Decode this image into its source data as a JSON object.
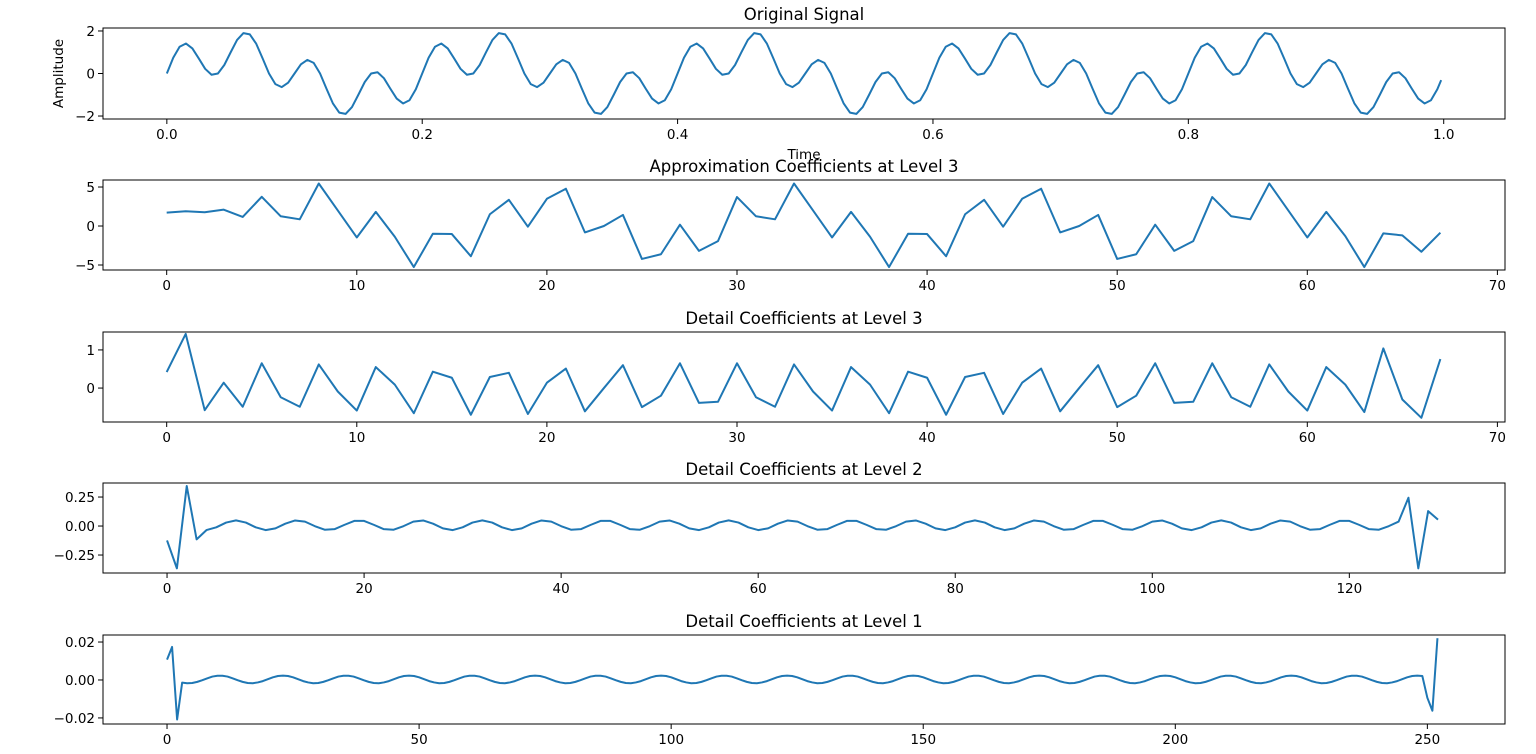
{
  "line_color": "#1f77b4",
  "chart_data": [
    {
      "type": "line",
      "title": "Original Signal",
      "xlabel": "Time",
      "ylabel": "Amplitude",
      "xlim": [
        -0.05,
        1.048
      ],
      "ylim": [
        -2.14,
        2.14
      ],
      "xticks": [
        0.0,
        0.2,
        0.4,
        0.6,
        0.8,
        1.0
      ],
      "xtick_labels": [
        "0.0",
        "0.2",
        "0.4",
        "0.6",
        "0.8",
        "1.0"
      ],
      "yticks": [
        -2,
        0,
        2
      ],
      "ytick_labels": [
        "−2",
        "0",
        "2"
      ],
      "grid": false,
      "x": [
        0,
        0.005,
        0.01,
        0.015,
        0.02,
        0.025,
        0.03,
        0.035,
        0.04,
        0.045,
        0.05,
        0.055,
        0.06,
        0.065,
        0.07,
        0.075,
        0.08,
        0.085,
        0.09,
        0.095,
        0.1,
        0.105,
        0.11,
        0.115,
        0.12,
        0.125,
        0.13,
        0.135,
        0.14,
        0.145,
        0.15,
        0.155,
        0.16,
        0.165,
        0.17,
        0.175,
        0.18,
        0.185,
        0.19,
        0.195,
        0.2,
        0.205,
        0.21,
        0.215,
        0.22,
        0.225,
        0.23,
        0.235,
        0.24,
        0.245,
        0.25,
        0.255,
        0.26,
        0.265,
        0.27,
        0.275,
        0.28,
        0.285,
        0.29,
        0.295,
        0.3,
        0.305,
        0.31,
        0.315,
        0.32,
        0.325,
        0.33,
        0.335,
        0.34,
        0.345,
        0.35,
        0.355,
        0.36,
        0.365,
        0.37,
        0.375,
        0.38,
        0.385,
        0.39,
        0.395,
        0.4,
        0.405,
        0.41,
        0.415,
        0.42,
        0.425,
        0.43,
        0.435,
        0.44,
        0.445,
        0.45,
        0.455,
        0.46,
        0.465,
        0.47,
        0.475,
        0.48,
        0.485,
        0.49,
        0.495,
        0.5,
        0.505,
        0.51,
        0.515,
        0.52,
        0.525,
        0.53,
        0.535,
        0.54,
        0.545,
        0.55,
        0.555,
        0.56,
        0.565,
        0.57,
        0.575,
        0.58,
        0.585,
        0.59,
        0.595,
        0.6,
        0.605,
        0.61,
        0.615,
        0.62,
        0.625,
        0.63,
        0.635,
        0.64,
        0.645,
        0.65,
        0.655,
        0.66,
        0.665,
        0.67,
        0.675,
        0.68,
        0.685,
        0.69,
        0.695,
        0.7,
        0.705,
        0.71,
        0.715,
        0.72,
        0.725,
        0.73,
        0.735,
        0.74,
        0.745,
        0.75,
        0.755,
        0.76,
        0.765,
        0.77,
        0.775,
        0.78,
        0.785,
        0.79,
        0.795,
        0.8,
        0.805,
        0.81,
        0.815,
        0.82,
        0.825,
        0.83,
        0.835,
        0.84,
        0.845,
        0.85,
        0.855,
        0.86,
        0.865,
        0.87,
        0.875,
        0.88,
        0.885,
        0.89,
        0.895,
        0.9,
        0.905,
        0.91,
        0.915,
        0.92,
        0.925,
        0.93,
        0.935,
        0.94,
        0.945,
        0.95,
        0.955,
        0.96,
        0.965,
        0.97,
        0.975,
        0.98,
        0.985,
        0.99,
        0.995,
        0.998
      ],
      "values": [
        0,
        0.74,
        1.26,
        1.41,
        1.18,
        0.71,
        0.22,
        -0.06,
        0,
        0.4,
        1,
        1.58,
        1.9,
        1.84,
        1.4,
        0.71,
        0,
        -0.5,
        -0.64,
        -0.43,
        0,
        0.43,
        0.64,
        0.5,
        0,
        -0.71,
        -1.4,
        -1.84,
        -1.9,
        -1.58,
        -1,
        -0.4,
        0,
        0.06,
        -0.22,
        -0.71,
        -1.18,
        -1.41,
        -1.26,
        -0.74,
        0,
        0.74,
        1.26,
        1.41,
        1.18,
        0.71,
        0.22,
        -0.06,
        0,
        0.4,
        1,
        1.58,
        1.9,
        1.84,
        1.4,
        0.71,
        0,
        -0.5,
        -0.64,
        -0.43,
        0,
        0.43,
        0.64,
        0.5,
        0,
        -0.71,
        -1.4,
        -1.84,
        -1.9,
        -1.58,
        -1,
        -0.4,
        0,
        0.06,
        -0.22,
        -0.71,
        -1.18,
        -1.41,
        -1.26,
        -0.74,
        0,
        0.74,
        1.26,
        1.41,
        1.18,
        0.71,
        0.22,
        -0.06,
        0,
        0.4,
        1,
        1.58,
        1.9,
        1.84,
        1.4,
        0.71,
        0,
        -0.5,
        -0.64,
        -0.43,
        0,
        0.43,
        0.64,
        0.5,
        0,
        -0.71,
        -1.4,
        -1.84,
        -1.9,
        -1.58,
        -1,
        -0.4,
        0,
        0.06,
        -0.22,
        -0.71,
        -1.18,
        -1.41,
        -1.26,
        -0.74,
        0,
        0.74,
        1.26,
        1.41,
        1.18,
        0.71,
        0.22,
        -0.06,
        0,
        0.4,
        1,
        1.58,
        1.9,
        1.84,
        1.4,
        0.71,
        0,
        -0.5,
        -0.64,
        -0.43,
        0,
        0.43,
        0.64,
        0.5,
        0,
        -0.71,
        -1.4,
        -1.84,
        -1.9,
        -1.58,
        -1,
        -0.4,
        0,
        0.06,
        -0.22,
        -0.71,
        -1.18,
        -1.41,
        -1.26,
        -0.74,
        0,
        0.74,
        1.26,
        1.41,
        1.18,
        0.71,
        0.22,
        -0.06,
        0,
        0.4,
        1,
        1.58,
        1.9,
        1.84,
        1.4,
        0.71,
        0,
        -0.5,
        -0.64,
        -0.43,
        0,
        0.43,
        0.64,
        0.5,
        0,
        -0.71,
        -1.4,
        -1.84,
        -1.9,
        -1.58,
        -1,
        -0.4,
        0,
        0.06,
        -0.22,
        -0.71,
        -1.18,
        -1.41,
        -1.26,
        -0.74,
        -0.31
      ]
    },
    {
      "type": "line",
      "title": "Approximation Coefficients at Level 3",
      "xlim": [
        -3.35,
        70.4
      ],
      "ylim": [
        -5.64,
        5.9
      ],
      "xticks": [
        0,
        10,
        20,
        30,
        40,
        50,
        60,
        70
      ],
      "xtick_labels": [
        "0",
        "10",
        "20",
        "30",
        "40",
        "50",
        "60",
        "70"
      ],
      "yticks": [
        -5,
        0,
        5
      ],
      "ytick_labels": [
        "−5",
        "0",
        "5"
      ],
      "grid": false,
      "values": [
        1.72,
        1.9,
        1.77,
        2.1,
        1.16,
        3.75,
        1.25,
        0.86,
        5.45,
        2.0,
        -1.47,
        1.81,
        -1.38,
        -5.26,
        -0.99,
        -1.03,
        -3.88,
        1.51,
        3.36,
        -0.09,
        3.49,
        4.78,
        -0.82,
        0.0,
        1.42,
        -4.22,
        -3.62,
        0.17,
        -3.19,
        -1.94,
        3.71,
        1.25,
        0.86,
        5.45,
        2.0,
        -1.47,
        1.81,
        -1.38,
        -5.26,
        -0.99,
        -1.03,
        -3.88,
        1.51,
        3.36,
        -0.09,
        3.49,
        4.78,
        -0.82,
        0.0,
        1.42,
        -4.22,
        -3.62,
        0.17,
        -3.19,
        -1.94,
        3.71,
        1.25,
        0.86,
        5.45,
        2.0,
        -1.47,
        1.81,
        -1.3,
        -5.26,
        -0.95,
        -1.2,
        -3.3,
        -0.86
      ]
    },
    {
      "type": "line",
      "title": "Detail Coefficients at Level 3",
      "xlim": [
        -3.35,
        70.4
      ],
      "ylim": [
        -0.89,
        1.47
      ],
      "xticks": [
        0,
        10,
        20,
        30,
        40,
        50,
        60,
        70
      ],
      "xtick_labels": [
        "0",
        "10",
        "20",
        "30",
        "40",
        "50",
        "60",
        "70"
      ],
      "yticks": [
        0,
        1
      ],
      "ytick_labels": [
        "0",
        "1"
      ],
      "grid": false,
      "values": [
        0.42,
        1.42,
        -0.58,
        0.14,
        -0.49,
        0.65,
        -0.24,
        -0.49,
        0.62,
        -0.09,
        -0.59,
        0.55,
        0.09,
        -0.66,
        0.43,
        0.27,
        -0.7,
        0.29,
        0.4,
        -0.68,
        0.14,
        0.51,
        -0.61,
        0.0,
        0.6,
        -0.5,
        -0.2,
        0.65,
        -0.39,
        -0.36,
        0.65,
        -0.24,
        -0.49,
        0.62,
        -0.09,
        -0.59,
        0.55,
        0.09,
        -0.66,
        0.43,
        0.27,
        -0.7,
        0.29,
        0.4,
        -0.68,
        0.14,
        0.51,
        -0.61,
        0.0,
        0.6,
        -0.5,
        -0.2,
        0.65,
        -0.39,
        -0.36,
        0.65,
        -0.24,
        -0.49,
        0.62,
        -0.09,
        -0.59,
        0.55,
        0.09,
        -0.63,
        1.04,
        -0.3,
        -0.78,
        0.76
      ]
    },
    {
      "type": "line",
      "title": "Detail Coefficients at Level 2",
      "xlim": [
        -6.5,
        135.8
      ],
      "ylim": [
        -0.405,
        0.371
      ],
      "xticks": [
        0,
        20,
        40,
        60,
        80,
        100,
        120
      ],
      "xtick_labels": [
        "0",
        "20",
        "40",
        "60",
        "80",
        "100",
        "120"
      ],
      "yticks": [
        -0.25,
        0,
        0.25
      ],
      "ytick_labels": [
        "−0.25",
        "0.00",
        "0.25"
      ],
      "grid": false,
      "values": [
        -0.124,
        -0.365,
        0.345,
        -0.115,
        -0.035,
        -0.011,
        0.03,
        0.049,
        0.03,
        -0.011,
        -0.035,
        -0.02,
        0.02,
        0.048,
        0.038,
        -0.001,
        -0.032,
        -0.027,
        0.01,
        0.044,
        0.044,
        0.01,
        -0.027,
        -0.032,
        -0.001,
        0.038,
        0.048,
        0.02,
        -0.02,
        -0.035,
        -0.011,
        0.03,
        0.049,
        0.03,
        -0.011,
        -0.035,
        -0.02,
        0.02,
        0.048,
        0.038,
        -0.001,
        -0.032,
        -0.027,
        0.01,
        0.044,
        0.044,
        0.01,
        -0.027,
        -0.032,
        -0.001,
        0.038,
        0.048,
        0.02,
        -0.02,
        -0.035,
        -0.011,
        0.03,
        0.049,
        0.03,
        -0.011,
        -0.035,
        -0.02,
        0.02,
        0.048,
        0.038,
        -0.001,
        -0.032,
        -0.027,
        0.01,
        0.044,
        0.044,
        0.01,
        -0.027,
        -0.032,
        -0.001,
        0.038,
        0.048,
        0.02,
        -0.02,
        -0.035,
        -0.011,
        0.03,
        0.049,
        0.03,
        -0.011,
        -0.035,
        -0.02,
        0.02,
        0.048,
        0.038,
        -0.001,
        -0.032,
        -0.027,
        0.01,
        0.044,
        0.044,
        0.01,
        -0.027,
        -0.032,
        -0.001,
        0.038,
        0.048,
        0.02,
        -0.02,
        -0.035,
        -0.011,
        0.03,
        0.049,
        0.03,
        -0.011,
        -0.035,
        -0.02,
        0.02,
        0.048,
        0.038,
        -0.001,
        -0.032,
        -0.027,
        0.01,
        0.044,
        0.044,
        0.01,
        -0.027,
        -0.032,
        -0.001,
        0.038,
        0.244,
        -0.365,
        0.129,
        0.055
      ]
    },
    {
      "type": "line",
      "title": "Detail Coefficients at Level 1",
      "xlim": [
        -12.7,
        265.4
      ],
      "ylim": [
        -0.0232,
        0.0237
      ],
      "xticks": [
        0,
        50,
        100,
        150,
        200,
        250
      ],
      "xtick_labels": [
        "0",
        "50",
        "100",
        "150",
        "200",
        "250"
      ],
      "yticks": [
        -0.02,
        0,
        0.02
      ],
      "ytick_labels": [
        "−0.02",
        "0.00",
        "0.02"
      ],
      "grid": false,
      "values": [
        0.0107,
        0.0174,
        -0.0208,
        -0.0014,
        -0.0017,
        -0.0016,
        -0.001,
        -0.0001,
        0.0009,
        0.0018,
        0.0022,
        0.0022,
        0.0018,
        0.0009,
        -0.0001,
        -0.001,
        -0.0016,
        -0.0017,
        -0.0013,
        -0.0006,
        0.0004,
        0.0014,
        0.0021,
        0.0023,
        0.0021,
        0.0014,
        0.0004,
        -0.0006,
        -0.0013,
        -0.0017,
        -0.0016,
        -0.001,
        -0.0001,
        0.0009,
        0.0018,
        0.0022,
        0.0022,
        0.0018,
        0.0009,
        -0.0001,
        -0.001,
        -0.0016,
        -0.0017,
        -0.0013,
        -0.0006,
        0.0004,
        0.0014,
        0.0021,
        0.0023,
        0.0021,
        0.0014,
        0.0004,
        -0.0006,
        -0.0013,
        -0.0017,
        -0.0016,
        -0.001,
        -0.0001,
        0.0009,
        0.0018,
        0.0022,
        0.0022,
        0.0018,
        0.0009,
        -0.0001,
        -0.001,
        -0.0016,
        -0.0017,
        -0.0013,
        -0.0006,
        0.0004,
        0.0014,
        0.0021,
        0.0023,
        0.0021,
        0.0014,
        0.0004,
        -0.0006,
        -0.0013,
        -0.0017,
        -0.0016,
        -0.001,
        -0.0001,
        0.0009,
        0.0018,
        0.0022,
        0.0022,
        0.0018,
        0.0009,
        -0.0001,
        -0.001,
        -0.0016,
        -0.0017,
        -0.0013,
        -0.0006,
        0.0004,
        0.0014,
        0.0021,
        0.0023,
        0.0021,
        0.0014,
        0.0004,
        -0.0006,
        -0.0013,
        -0.0017,
        -0.0016,
        -0.001,
        -0.0001,
        0.0009,
        0.0018,
        0.0022,
        0.0022,
        0.0018,
        0.0009,
        -0.0001,
        -0.001,
        -0.0016,
        -0.0017,
        -0.0013,
        -0.0006,
        0.0004,
        0.0014,
        0.0021,
        0.0023,
        0.0021,
        0.0014,
        0.0004,
        -0.0006,
        -0.0013,
        -0.0017,
        -0.0016,
        -0.001,
        -0.0001,
        0.0009,
        0.0018,
        0.0022,
        0.0022,
        0.0018,
        0.0009,
        -0.0001,
        -0.001,
        -0.0016,
        -0.0017,
        -0.0013,
        -0.0006,
        0.0004,
        0.0014,
        0.0021,
        0.0023,
        0.0021,
        0.0014,
        0.0004,
        -0.0006,
        -0.0013,
        -0.0017,
        -0.0016,
        -0.001,
        -0.0001,
        0.0009,
        0.0018,
        0.0022,
        0.0022,
        0.0018,
        0.0009,
        -0.0001,
        -0.001,
        -0.0016,
        -0.0017,
        -0.0013,
        -0.0006,
        0.0004,
        0.0014,
        0.0021,
        0.0023,
        0.0021,
        0.0014,
        0.0004,
        -0.0006,
        -0.0013,
        -0.0017,
        -0.0016,
        -0.001,
        -0.0001,
        0.0009,
        0.0018,
        0.0022,
        0.0022,
        0.0018,
        0.0009,
        -0.0001,
        -0.001,
        -0.0016,
        -0.0017,
        -0.0013,
        -0.0006,
        0.0004,
        0.0014,
        0.0021,
        0.0023,
        0.0021,
        0.0014,
        0.0004,
        -0.0006,
        -0.0013,
        -0.0017,
        -0.0016,
        -0.001,
        -0.0001,
        0.0009,
        0.0018,
        0.0022,
        0.0022,
        0.0018,
        0.0009,
        -0.0001,
        -0.001,
        -0.0016,
        -0.0017,
        -0.0013,
        -0.0006,
        0.0004,
        0.0014,
        0.0021,
        0.0023,
        0.0021,
        0.0014,
        0.0004,
        -0.0006,
        -0.0013,
        -0.0017,
        -0.0016,
        -0.001,
        -0.0001,
        0.0009,
        0.0018,
        0.0022,
        0.0022,
        0.0018,
        0.0009,
        -0.0001,
        -0.001,
        -0.0016,
        -0.0017,
        -0.0013,
        -0.0006,
        0.0004,
        0.0014,
        0.0021,
        0.0023,
        0.0021,
        -0.0094,
        -0.0162,
        0.022
      ]
    }
  ]
}
